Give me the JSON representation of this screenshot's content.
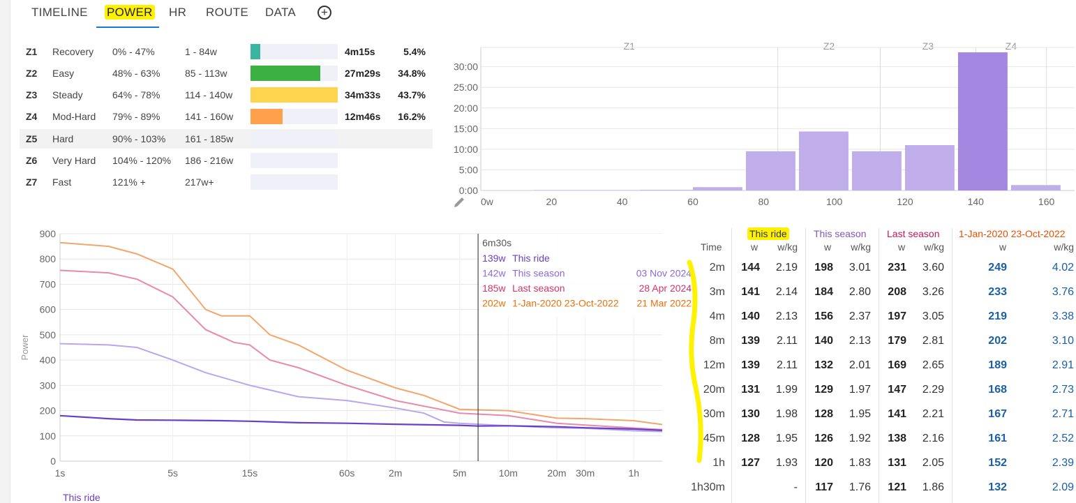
{
  "tabs": [
    {
      "label": "TIMELINE"
    },
    {
      "label": "POWER"
    },
    {
      "label": "HR"
    },
    {
      "label": "ROUTE"
    },
    {
      "label": "DATA"
    }
  ],
  "zones": [
    {
      "id": "Z1",
      "name": "Recovery",
      "pct": "0% - 47%",
      "watts": "1 - 84w",
      "time": "4m15s",
      "percent": "5.4%",
      "fill": 0.11,
      "color": "#3ab5a0"
    },
    {
      "id": "Z2",
      "name": "Easy",
      "pct": "48% - 63%",
      "watts": "85 - 113w",
      "time": "27m29s",
      "percent": "34.8%",
      "fill": 0.8,
      "color": "#3cb043"
    },
    {
      "id": "Z3",
      "name": "Steady",
      "pct": "64% - 78%",
      "watts": "114 - 140w",
      "time": "34m33s",
      "percent": "43.7%",
      "fill": 1.0,
      "color": "#ffd54f"
    },
    {
      "id": "Z4",
      "name": "Mod-Hard",
      "pct": "79% - 89%",
      "watts": "141 - 160w",
      "time": "12m46s",
      "percent": "16.2%",
      "fill": 0.37,
      "color": "#ffa04d"
    },
    {
      "id": "Z5",
      "name": "Hard",
      "pct": "90% - 103%",
      "watts": "161 - 185w",
      "time": "",
      "percent": "",
      "fill": 0,
      "color": "#ff6b6b"
    },
    {
      "id": "Z6",
      "name": "Very Hard",
      "pct": "104% - 120%",
      "watts": "186 - 216w",
      "time": "",
      "percent": "",
      "fill": 0,
      "color": "#c44"
    },
    {
      "id": "Z7",
      "name": "Fast",
      "pct": "121% +",
      "watts": "217w+",
      "time": "",
      "percent": "",
      "fill": 0,
      "color": "#900"
    }
  ],
  "histogram": {
    "zone_labels": [
      {
        "label": "Z1",
        "from": 0,
        "to": 84
      },
      {
        "label": "Z2",
        "from": 84,
        "to": 113
      },
      {
        "label": "Z3",
        "from": 113,
        "to": 140
      },
      {
        "label": "Z4",
        "from": 140,
        "to": 160
      }
    ],
    "x_ticks": [
      "0w",
      "20",
      "40",
      "60",
      "80",
      "100",
      "120",
      "140",
      "160"
    ],
    "y_ticks": [
      "0:00",
      "5:00",
      "10:00",
      "15:00",
      "20:00",
      "25:00",
      "30:00"
    ],
    "bars": [
      {
        "from": 15,
        "to": 30,
        "minutes": 0.1
      },
      {
        "from": 30,
        "to": 45,
        "minutes": 0.1
      },
      {
        "from": 45,
        "to": 60,
        "minutes": 0.15
      },
      {
        "from": 60,
        "to": 74,
        "minutes": 0.8
      },
      {
        "from": 75,
        "to": 89,
        "minutes": 9.5
      },
      {
        "from": 90,
        "to": 104,
        "minutes": 14.3
      },
      {
        "from": 105,
        "to": 119,
        "minutes": 9.5
      },
      {
        "from": 120,
        "to": 134,
        "minutes": 11
      },
      {
        "from": 135,
        "to": 149,
        "minutes": 33.5
      },
      {
        "from": 150,
        "to": 164,
        "minutes": 1.3
      }
    ]
  },
  "chart_data": {
    "type": "line",
    "ylabel": "Power",
    "ylim": [
      0,
      900
    ],
    "y_ticks": [
      "0",
      "100",
      "200",
      "300",
      "400",
      "500",
      "600",
      "700",
      "800",
      "900"
    ],
    "x_ticks": [
      {
        "label": "1s",
        "sec": 1
      },
      {
        "label": "5s",
        "sec": 5
      },
      {
        "label": "15s",
        "sec": 15
      },
      {
        "label": "60s",
        "sec": 60
      },
      {
        "label": "2m",
        "sec": 120
      },
      {
        "label": "5m",
        "sec": 300
      },
      {
        "label": "10m",
        "sec": 600
      },
      {
        "label": "20m",
        "sec": 1200
      },
      {
        "label": "30m",
        "sec": 1800
      },
      {
        "label": "1h",
        "sec": 3600
      }
    ],
    "series": [
      {
        "name": "This ride",
        "color": "#6a3fc7",
        "points": [
          [
            1,
            180
          ],
          [
            2,
            168
          ],
          [
            3,
            163
          ],
          [
            5,
            162
          ],
          [
            10,
            160
          ],
          [
            15,
            158
          ],
          [
            30,
            152
          ],
          [
            60,
            150
          ],
          [
            120,
            146
          ],
          [
            300,
            142
          ],
          [
            390,
            139
          ],
          [
            600,
            140
          ],
          [
            1200,
            136
          ],
          [
            1800,
            132
          ],
          [
            3600,
            127
          ],
          [
            5400,
            122
          ]
        ]
      },
      {
        "name": "This season",
        "color": "#b9a7ee",
        "points": [
          [
            1,
            465
          ],
          [
            2,
            460
          ],
          [
            3,
            450
          ],
          [
            5,
            400
          ],
          [
            8,
            350
          ],
          [
            15,
            300
          ],
          [
            30,
            255
          ],
          [
            60,
            240
          ],
          [
            120,
            210
          ],
          [
            180,
            190
          ],
          [
            240,
            155
          ],
          [
            300,
            150
          ],
          [
            600,
            140
          ],
          [
            1200,
            132
          ],
          [
            1800,
            130
          ],
          [
            3600,
            120
          ],
          [
            5400,
            117
          ]
        ]
      },
      {
        "name": "Last season",
        "color": "#e98aa8",
        "points": [
          [
            1,
            755
          ],
          [
            2,
            745
          ],
          [
            3,
            720
          ],
          [
            5,
            650
          ],
          [
            8,
            520
          ],
          [
            12,
            470
          ],
          [
            15,
            460
          ],
          [
            20,
            400
          ],
          [
            30,
            370
          ],
          [
            60,
            300
          ],
          [
            120,
            240
          ],
          [
            300,
            190
          ],
          [
            600,
            180
          ],
          [
            1200,
            150
          ],
          [
            1800,
            143
          ],
          [
            3600,
            131
          ],
          [
            5400,
            125
          ]
        ]
      },
      {
        "name": "1-Jan-2020 23-Oct-2022",
        "color": "#f4a56b",
        "points": [
          [
            1,
            865
          ],
          [
            2,
            850
          ],
          [
            3,
            820
          ],
          [
            5,
            760
          ],
          [
            8,
            600
          ],
          [
            10,
            575
          ],
          [
            15,
            575
          ],
          [
            20,
            500
          ],
          [
            30,
            460
          ],
          [
            60,
            360
          ],
          [
            120,
            290
          ],
          [
            180,
            260
          ],
          [
            300,
            205
          ],
          [
            600,
            200
          ],
          [
            1200,
            170
          ],
          [
            1800,
            168
          ],
          [
            3600,
            160
          ],
          [
            5400,
            145
          ]
        ]
      }
    ],
    "cursor": {
      "sec": 390,
      "label": "6m30s"
    },
    "tooltip_rows": [
      {
        "watts": "139w",
        "name": "This ride",
        "date": "",
        "color": "#6a3fc7"
      },
      {
        "watts": "142w",
        "name": "This season",
        "date": "03 Nov 2024",
        "color": "#8a6ae0"
      },
      {
        "watts": "185w",
        "name": "Last season",
        "date": "28 Apr 2024",
        "color": "#d6336c"
      },
      {
        "watts": "202w",
        "name": "1-Jan-2020 23-Oct-2022",
        "date": "21 Mar 2022",
        "color": "#e8720c"
      }
    ],
    "legend_bottom": "This ride"
  },
  "power_table": {
    "groups": [
      {
        "label": "This ride",
        "color": "#333"
      },
      {
        "label": "This season",
        "color": "#7e57c2"
      },
      {
        "label": "Last season",
        "color": "#c2185b"
      },
      {
        "label": "1-Jan-2020 23-Oct-2022",
        "color": "#e65100"
      }
    ],
    "time_header": "Time",
    "w_header": "w",
    "wkg_header": "w/kg",
    "rows": [
      {
        "time": "2m",
        "r": [
          "144",
          "2.19",
          "198",
          "3.01",
          "231",
          "3.60",
          "249",
          "4.02"
        ]
      },
      {
        "time": "3m",
        "r": [
          "141",
          "2.14",
          "184",
          "2.80",
          "208",
          "3.26",
          "233",
          "3.76"
        ]
      },
      {
        "time": "4m",
        "r": [
          "140",
          "2.13",
          "156",
          "2.37",
          "197",
          "3.05",
          "219",
          "3.38"
        ]
      },
      {
        "time": "8m",
        "r": [
          "139",
          "2.11",
          "140",
          "2.13",
          "179",
          "2.81",
          "202",
          "3.10"
        ]
      },
      {
        "time": "12m",
        "r": [
          "139",
          "2.11",
          "132",
          "2.01",
          "169",
          "2.65",
          "189",
          "2.91"
        ]
      },
      {
        "time": "20m",
        "r": [
          "131",
          "1.99",
          "129",
          "1.97",
          "147",
          "2.29",
          "168",
          "2.73"
        ]
      },
      {
        "time": "30m",
        "r": [
          "130",
          "1.98",
          "128",
          "1.95",
          "141",
          "2.21",
          "167",
          "2.71"
        ]
      },
      {
        "time": "45m",
        "r": [
          "128",
          "1.95",
          "126",
          "1.92",
          "138",
          "2.16",
          "161",
          "2.52"
        ]
      },
      {
        "time": "1h",
        "r": [
          "127",
          "1.93",
          "120",
          "1.83",
          "131",
          "2.05",
          "152",
          "2.39"
        ]
      },
      {
        "time": "1h30m",
        "r": [
          "",
          "-",
          "117",
          "1.76",
          "121",
          "1.86",
          "132",
          "2.09"
        ]
      }
    ]
  }
}
